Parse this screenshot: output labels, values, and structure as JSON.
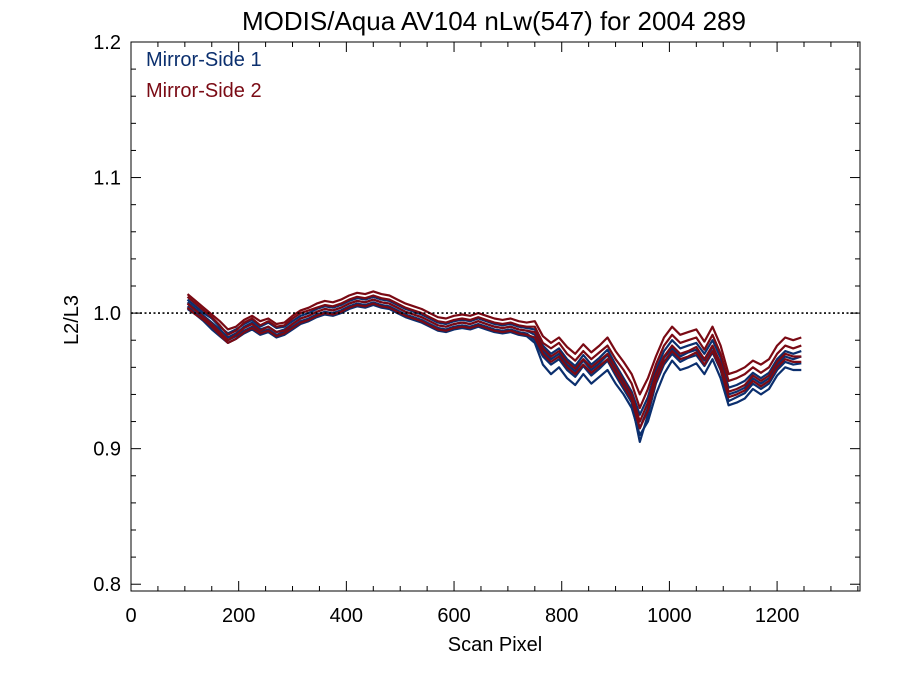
{
  "chart_data": {
    "type": "line",
    "title": "MODIS/Aqua AV104 nLw(547) for 2004 289",
    "xlabel": "Scan Pixel",
    "ylabel": "L2/L3",
    "xlim": [
      0,
      1354
    ],
    "ylim": [
      0.795,
      1.2
    ],
    "xticks": [
      0,
      200,
      400,
      600,
      800,
      1000,
      1200
    ],
    "xtick_labels": [
      "0",
      "200",
      "400",
      "600",
      "800",
      "1000",
      "1200"
    ],
    "yticks": [
      0.8,
      0.9,
      1.0,
      1.1,
      1.2
    ],
    "ytick_labels": [
      "0.8",
      "0.9",
      "1.0",
      "1.1",
      "1.2"
    ],
    "reference_line": {
      "y": 1.0,
      "style": "dotted"
    },
    "grid": false,
    "legend": {
      "position": "top-left",
      "entries": [
        {
          "label": "Mirror-Side 1",
          "color": "#0b2f6e"
        },
        {
          "label": "Mirror-Side 2",
          "color": "#7a0a14"
        }
      ]
    },
    "x": [
      105,
      120,
      135,
      150,
      165,
      180,
      195,
      210,
      225,
      240,
      255,
      270,
      285,
      300,
      315,
      330,
      345,
      360,
      375,
      390,
      405,
      420,
      435,
      450,
      465,
      480,
      495,
      510,
      525,
      540,
      555,
      570,
      585,
      600,
      615,
      630,
      645,
      660,
      675,
      690,
      705,
      720,
      735,
      750,
      765,
      780,
      795,
      810,
      825,
      840,
      855,
      870,
      885,
      900,
      915,
      930,
      945,
      960,
      975,
      990,
      1005,
      1020,
      1035,
      1050,
      1065,
      1080,
      1095,
      1110,
      1125,
      1140,
      1155,
      1170,
      1185,
      1200,
      1215,
      1230,
      1245
    ],
    "series": [
      {
        "name": "Mirror-Side 1",
        "color": "#0b2f6e",
        "values": [
          1.008,
          1.003,
          0.998,
          0.993,
          0.988,
          0.982,
          0.985,
          0.99,
          0.993,
          0.988,
          0.99,
          0.986,
          0.988,
          0.992,
          0.996,
          0.998,
          1.001,
          1.003,
          1.002,
          1.004,
          1.007,
          1.009,
          1.008,
          1.01,
          1.008,
          1.007,
          1.004,
          1.001,
          0.999,
          0.997,
          0.994,
          0.991,
          0.99,
          0.992,
          0.993,
          0.992,
          0.994,
          0.992,
          0.99,
          0.989,
          0.99,
          0.988,
          0.987,
          0.984,
          0.972,
          0.966,
          0.97,
          0.962,
          0.957,
          0.965,
          0.958,
          0.963,
          0.969,
          0.958,
          0.948,
          0.938,
          0.915,
          0.93,
          0.953,
          0.967,
          0.974,
          0.968,
          0.971,
          0.973,
          0.965,
          0.975,
          0.962,
          0.94,
          0.942,
          0.945,
          0.952,
          0.948,
          0.952,
          0.962,
          0.968,
          0.966,
          0.968
        ]
      },
      {
        "name": "Mirror-Side 1",
        "color": "#0b2f6e",
        "values": [
          1.005,
          1.0,
          0.996,
          0.99,
          0.985,
          0.98,
          0.983,
          0.987,
          0.99,
          0.986,
          0.988,
          0.984,
          0.986,
          0.99,
          0.994,
          0.996,
          0.999,
          1.001,
          1.0,
          1.002,
          1.005,
          1.007,
          1.006,
          1.008,
          1.006,
          1.005,
          1.002,
          0.999,
          0.997,
          0.995,
          0.992,
          0.989,
          0.988,
          0.99,
          0.991,
          0.99,
          0.992,
          0.99,
          0.988,
          0.987,
          0.988,
          0.986,
          0.985,
          0.98,
          0.968,
          0.962,
          0.966,
          0.958,
          0.953,
          0.961,
          0.954,
          0.959,
          0.965,
          0.954,
          0.944,
          0.934,
          0.905,
          0.925,
          0.948,
          0.962,
          0.97,
          0.964,
          0.967,
          0.969,
          0.961,
          0.971,
          0.958,
          0.935,
          0.938,
          0.941,
          0.948,
          0.944,
          0.948,
          0.958,
          0.964,
          0.962,
          0.963
        ]
      },
      {
        "name": "Mirror-Side 1",
        "color": "#0b2f6e",
        "values": [
          1.01,
          1.005,
          1.0,
          0.996,
          0.99,
          0.985,
          0.988,
          0.992,
          0.995,
          0.99,
          0.993,
          0.989,
          0.99,
          0.994,
          0.998,
          1.0,
          1.003,
          1.005,
          1.004,
          1.006,
          1.009,
          1.011,
          1.01,
          1.012,
          1.01,
          1.009,
          1.006,
          1.003,
          1.001,
          0.999,
          0.996,
          0.993,
          0.992,
          0.994,
          0.995,
          0.994,
          0.996,
          0.994,
          0.992,
          0.991,
          0.992,
          0.99,
          0.989,
          0.988,
          0.976,
          0.97,
          0.974,
          0.966,
          0.961,
          0.969,
          0.962,
          0.967,
          0.973,
          0.962,
          0.952,
          0.942,
          0.925,
          0.938,
          0.958,
          0.972,
          0.98,
          0.974,
          0.976,
          0.978,
          0.97,
          0.98,
          0.967,
          0.945,
          0.947,
          0.95,
          0.956,
          0.952,
          0.956,
          0.966,
          0.972,
          0.97,
          0.972
        ]
      },
      {
        "name": "Mirror-Side 1",
        "color": "#0b2f6e",
        "values": [
          1.003,
          0.999,
          0.994,
          0.988,
          0.983,
          0.978,
          0.981,
          0.985,
          0.988,
          0.984,
          0.986,
          0.982,
          0.984,
          0.988,
          0.992,
          0.994,
          0.997,
          0.999,
          0.998,
          1.0,
          1.003,
          1.005,
          1.004,
          1.006,
          1.004,
          1.003,
          1.0,
          0.997,
          0.995,
          0.993,
          0.99,
          0.987,
          0.986,
          0.988,
          0.989,
          0.988,
          0.99,
          0.988,
          0.986,
          0.985,
          0.986,
          0.984,
          0.983,
          0.978,
          0.962,
          0.955,
          0.96,
          0.952,
          0.947,
          0.955,
          0.948,
          0.953,
          0.958,
          0.948,
          0.94,
          0.93,
          0.91,
          0.92,
          0.94,
          0.955,
          0.965,
          0.958,
          0.96,
          0.963,
          0.955,
          0.966,
          0.952,
          0.932,
          0.934,
          0.937,
          0.944,
          0.94,
          0.944,
          0.954,
          0.96,
          0.958,
          0.958
        ]
      },
      {
        "name": "Mirror-Side 2",
        "color": "#7a0a14",
        "values": [
          1.012,
          1.007,
          1.002,
          0.997,
          0.991,
          0.984,
          0.987,
          0.993,
          0.996,
          0.991,
          0.994,
          0.99,
          0.991,
          0.996,
          1.0,
          1.002,
          1.004,
          1.006,
          1.005,
          1.007,
          1.01,
          1.012,
          1.011,
          1.013,
          1.011,
          1.01,
          1.007,
          1.004,
          1.002,
          1.0,
          0.997,
          0.994,
          0.993,
          0.995,
          0.996,
          0.995,
          0.997,
          0.995,
          0.993,
          0.992,
          0.993,
          0.991,
          0.99,
          0.99,
          0.978,
          0.974,
          0.978,
          0.97,
          0.965,
          0.972,
          0.966,
          0.971,
          0.976,
          0.966,
          0.958,
          0.948,
          0.93,
          0.944,
          0.962,
          0.976,
          0.984,
          0.978,
          0.98,
          0.982,
          0.973,
          0.984,
          0.97,
          0.95,
          0.952,
          0.955,
          0.96,
          0.956,
          0.96,
          0.97,
          0.976,
          0.974,
          0.976
        ]
      },
      {
        "name": "Mirror-Side 2",
        "color": "#7a0a14",
        "values": [
          1.007,
          1.002,
          0.997,
          0.992,
          0.986,
          0.98,
          0.984,
          0.989,
          0.992,
          0.987,
          0.99,
          0.986,
          0.987,
          0.992,
          0.996,
          0.998,
          1.001,
          1.003,
          1.002,
          1.004,
          1.007,
          1.009,
          1.008,
          1.01,
          1.008,
          1.007,
          1.004,
          1.001,
          0.999,
          0.997,
          0.994,
          0.991,
          0.99,
          0.992,
          0.993,
          0.992,
          0.994,
          0.992,
          0.99,
          0.989,
          0.99,
          0.988,
          0.987,
          0.986,
          0.974,
          0.968,
          0.972,
          0.964,
          0.959,
          0.966,
          0.96,
          0.965,
          0.97,
          0.96,
          0.95,
          0.94,
          0.92,
          0.934,
          0.955,
          0.968,
          0.976,
          0.97,
          0.972,
          0.975,
          0.966,
          0.976,
          0.963,
          0.942,
          0.944,
          0.947,
          0.954,
          0.95,
          0.954,
          0.964,
          0.97,
          0.968,
          0.968
        ]
      },
      {
        "name": "Mirror-Side 2",
        "color": "#7a0a14",
        "values": [
          1.014,
          1.009,
          1.004,
          0.999,
          0.994,
          0.988,
          0.99,
          0.995,
          0.998,
          0.994,
          0.996,
          0.992,
          0.993,
          0.998,
          1.002,
          1.004,
          1.007,
          1.009,
          1.008,
          1.01,
          1.013,
          1.015,
          1.014,
          1.016,
          1.014,
          1.013,
          1.01,
          1.007,
          1.005,
          1.003,
          1.0,
          0.997,
          0.996,
          0.998,
          0.999,
          0.998,
          1.0,
          0.998,
          0.996,
          0.995,
          0.996,
          0.994,
          0.993,
          0.994,
          0.983,
          0.978,
          0.982,
          0.975,
          0.97,
          0.977,
          0.971,
          0.976,
          0.982,
          0.972,
          0.964,
          0.955,
          0.94,
          0.952,
          0.968,
          0.982,
          0.99,
          0.984,
          0.986,
          0.988,
          0.979,
          0.99,
          0.976,
          0.955,
          0.957,
          0.96,
          0.965,
          0.962,
          0.966,
          0.976,
          0.982,
          0.98,
          0.982
        ]
      },
      {
        "name": "Mirror-Side 2",
        "color": "#7a0a14",
        "values": [
          1.004,
          0.999,
          0.995,
          0.99,
          0.984,
          0.978,
          0.981,
          0.986,
          0.989,
          0.985,
          0.987,
          0.983,
          0.985,
          0.989,
          0.993,
          0.995,
          0.998,
          1.0,
          0.999,
          1.001,
          1.004,
          1.006,
          1.005,
          1.007,
          1.005,
          1.004,
          1.001,
          0.998,
          0.996,
          0.994,
          0.991,
          0.988,
          0.987,
          0.989,
          0.99,
          0.989,
          0.991,
          0.989,
          0.987,
          0.986,
          0.987,
          0.985,
          0.984,
          0.982,
          0.97,
          0.964,
          0.968,
          0.96,
          0.955,
          0.962,
          0.956,
          0.961,
          0.966,
          0.956,
          0.946,
          0.936,
          0.915,
          0.928,
          0.95,
          0.964,
          0.972,
          0.966,
          0.968,
          0.971,
          0.962,
          0.972,
          0.959,
          0.938,
          0.94,
          0.943,
          0.95,
          0.946,
          0.95,
          0.96,
          0.966,
          0.964,
          0.964
        ]
      }
    ]
  }
}
